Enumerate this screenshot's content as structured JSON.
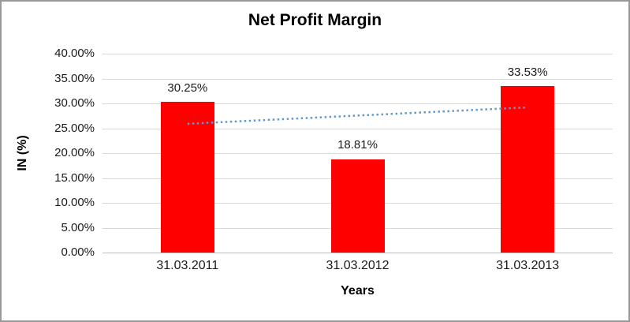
{
  "chart_data": {
    "type": "bar",
    "title": "Net Profit Margin",
    "xlabel": "Years",
    "ylabel": "IN (%)",
    "categories": [
      "31.03.2011",
      "31.03.2012",
      "31.03.2013"
    ],
    "values": [
      30.25,
      18.81,
      33.53
    ],
    "value_labels": [
      "30.25%",
      "18.81%",
      "33.53%"
    ],
    "ylim": [
      0,
      40
    ],
    "ytick_step": 5,
    "ytick_labels": [
      "0.00%",
      "5.00%",
      "10.00%",
      "15.00%",
      "20.00%",
      "25.00%",
      "30.00%",
      "35.00%",
      "40.00%"
    ],
    "grid": true,
    "legend": "none",
    "bar_color": "#ff0000",
    "trendline": {
      "type": "linear",
      "start_value": 25.9,
      "end_value": 29.2,
      "color": "#5b9bd5",
      "style": "dotted"
    }
  }
}
